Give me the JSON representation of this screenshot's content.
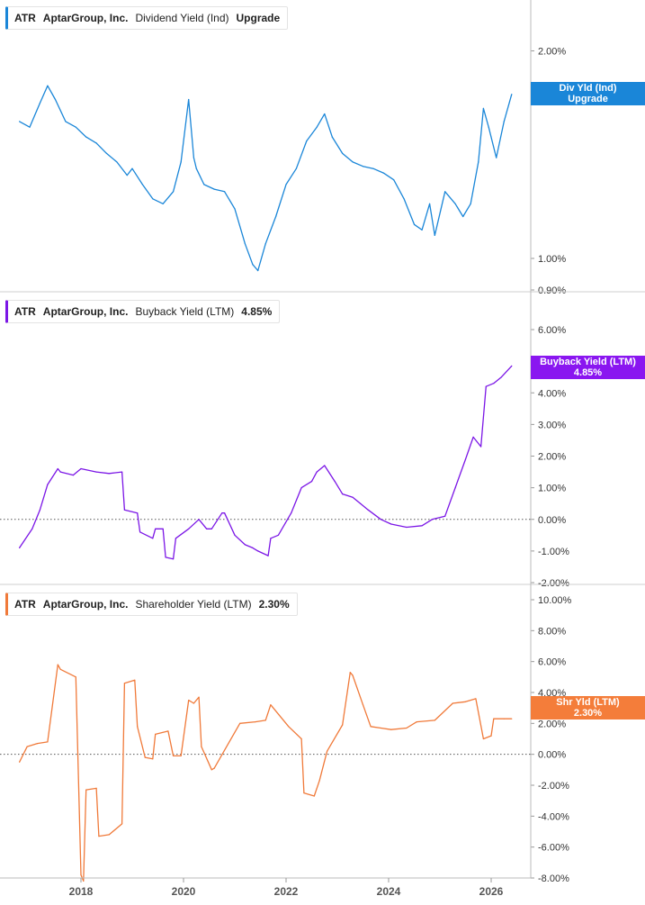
{
  "chart_data": [
    {
      "type": "line",
      "ticker": "ATR",
      "company": "AptarGroup, Inc.",
      "metric": "Dividend Yield (Ind)",
      "value_label": "Upgrade",
      "tag": [
        "Div Yld (Ind)",
        "Upgrade"
      ],
      "color": "#1a86d8",
      "scale": "log",
      "ylim": [
        0.9,
        2.3
      ],
      "yticks": [
        {
          "v": 2.0,
          "label": "2.00%"
        },
        {
          "v": 1.0,
          "label": "1.00%"
        },
        {
          "v": 0.9,
          "label": "0.90%"
        }
      ],
      "series": [
        {
          "x": [
            2016.8,
            2017.0,
            2017.2,
            2017.35,
            2017.5,
            2017.7,
            2017.9,
            2018.1,
            2018.3,
            2018.5,
            2018.7,
            2018.9,
            2019.0,
            2019.2,
            2019.4,
            2019.6,
            2019.8,
            2019.95,
            2020.1,
            2020.2,
            2020.25,
            2020.4,
            2020.6,
            2020.8,
            2021.0,
            2021.2,
            2021.35,
            2021.45,
            2021.6,
            2021.8,
            2022.0,
            2022.2,
            2022.4,
            2022.6,
            2022.75,
            2022.9,
            2023.1,
            2023.3,
            2023.5,
            2023.7,
            2023.9,
            2024.1,
            2024.3,
            2024.5,
            2024.65,
            2024.8,
            2024.9,
            2025.1,
            2025.3,
            2025.45,
            2025.6,
            2025.75,
            2025.85,
            2025.95,
            2026.1,
            2026.25,
            2026.4
          ],
          "y": [
            1.58,
            1.55,
            1.68,
            1.78,
            1.7,
            1.58,
            1.55,
            1.5,
            1.47,
            1.42,
            1.38,
            1.32,
            1.35,
            1.28,
            1.22,
            1.2,
            1.25,
            1.38,
            1.7,
            1.4,
            1.35,
            1.28,
            1.26,
            1.25,
            1.18,
            1.05,
            0.98,
            0.96,
            1.05,
            1.15,
            1.28,
            1.35,
            1.48,
            1.55,
            1.62,
            1.5,
            1.42,
            1.38,
            1.36,
            1.35,
            1.33,
            1.3,
            1.22,
            1.12,
            1.1,
            1.2,
            1.08,
            1.25,
            1.2,
            1.15,
            1.2,
            1.38,
            1.65,
            1.55,
            1.4,
            1.58,
            1.73
          ]
        }
      ]
    },
    {
      "type": "line",
      "ticker": "ATR",
      "company": "AptarGroup, Inc.",
      "metric": "Buyback Yield (LTM)",
      "value_label": "4.85%",
      "tag": [
        "Buyback Yield (LTM)",
        "4.85%"
      ],
      "color": "#7b16e6",
      "scale": "linear",
      "ylim": [
        -2.0,
        6.0
      ],
      "baseline": 0,
      "yticks": [
        {
          "v": 6,
          "label": "6.00%"
        },
        {
          "v": 5,
          "label": "5.00%"
        },
        {
          "v": 4,
          "label": "4.00%"
        },
        {
          "v": 3,
          "label": "3.00%"
        },
        {
          "v": 2,
          "label": "2.00%"
        },
        {
          "v": 1,
          "label": "1.00%"
        },
        {
          "v": 0,
          "label": "0.00%"
        },
        {
          "v": -1,
          "label": "-1.00%"
        },
        {
          "v": -2,
          "label": "-2.00%"
        }
      ],
      "series": [
        {
          "x": [
            2016.8,
            2017.05,
            2017.2,
            2017.35,
            2017.55,
            2017.6,
            2017.85,
            2018.0,
            2018.3,
            2018.55,
            2018.8,
            2018.85,
            2019.1,
            2019.15,
            2019.4,
            2019.45,
            2019.6,
            2019.65,
            2019.8,
            2019.85,
            2020.1,
            2020.3,
            2020.45,
            2020.55,
            2020.75,
            2020.8,
            2021.0,
            2021.2,
            2021.35,
            2021.45,
            2021.65,
            2021.7,
            2021.85,
            2022.1,
            2022.3,
            2022.5,
            2022.6,
            2022.75,
            2022.95,
            2023.1,
            2023.3,
            2023.45,
            2023.6,
            2023.85,
            2024.05,
            2024.35,
            2024.65,
            2024.85,
            2025.1,
            2025.3,
            2025.5,
            2025.65,
            2025.8,
            2025.9,
            2026.05,
            2026.2,
            2026.4
          ],
          "y": [
            -0.9,
            -0.3,
            0.3,
            1.1,
            1.6,
            1.5,
            1.4,
            1.6,
            1.5,
            1.45,
            1.5,
            0.3,
            0.2,
            -0.4,
            -0.6,
            -0.3,
            -0.3,
            -1.2,
            -1.25,
            -0.6,
            -0.3,
            0.0,
            -0.3,
            -0.3,
            0.2,
            0.2,
            -0.5,
            -0.8,
            -0.9,
            -1.0,
            -1.15,
            -0.6,
            -0.5,
            0.2,
            1.0,
            1.2,
            1.5,
            1.7,
            1.2,
            0.8,
            0.7,
            0.5,
            0.3,
            0.0,
            -0.15,
            -0.25,
            -0.2,
            0.0,
            0.1,
            1.0,
            1.9,
            2.6,
            2.3,
            4.2,
            4.3,
            4.5,
            4.85
          ]
        }
      ]
    },
    {
      "type": "line",
      "ticker": "ATR",
      "company": "AptarGroup, Inc.",
      "metric": "Shareholder Yield (LTM)",
      "value_label": "2.30%",
      "tag": [
        "Shr Yld (LTM)",
        "2.30%"
      ],
      "color": "#f07a3a",
      "scale": "linear",
      "ylim": [
        -8.0,
        10.0
      ],
      "baseline": 0,
      "yticks": [
        {
          "v": 10,
          "label": "10.00%"
        },
        {
          "v": 8,
          "label": "8.00%"
        },
        {
          "v": 6,
          "label": "6.00%"
        },
        {
          "v": 4,
          "label": "4.00%"
        },
        {
          "v": 2,
          "label": "2.00%"
        },
        {
          "v": 0,
          "label": "0.00%"
        },
        {
          "v": -2,
          "label": "-2.00%"
        },
        {
          "v": -4,
          "label": "-4.00%"
        },
        {
          "v": -6,
          "label": "-6.00%"
        },
        {
          "v": -8,
          "label": "-8.00%"
        }
      ],
      "series": [
        {
          "x": [
            2016.8,
            2016.95,
            2017.15,
            2017.35,
            2017.55,
            2017.6,
            2017.9,
            2018.0,
            2018.05,
            2018.1,
            2018.3,
            2018.35,
            2018.55,
            2018.8,
            2018.85,
            2019.05,
            2019.1,
            2019.25,
            2019.4,
            2019.45,
            2019.7,
            2019.8,
            2019.95,
            2020.1,
            2020.2,
            2020.3,
            2020.35,
            2020.55,
            2020.6,
            2021.1,
            2021.4,
            2021.6,
            2021.7,
            2022.05,
            2022.3,
            2022.35,
            2022.55,
            2022.65,
            2022.8,
            2023.1,
            2023.25,
            2023.3,
            2023.5,
            2023.65,
            2023.85,
            2024.05,
            2024.35,
            2024.55,
            2024.9,
            2025.25,
            2025.5,
            2025.7,
            2025.85,
            2026.0,
            2026.05,
            2026.25,
            2026.4
          ],
          "y": [
            -0.5,
            0.5,
            0.7,
            0.8,
            5.8,
            5.5,
            5.0,
            -7.8,
            -8.2,
            -2.3,
            -2.2,
            -5.3,
            -5.2,
            -4.5,
            4.6,
            4.8,
            1.8,
            -0.2,
            -0.3,
            1.3,
            1.5,
            -0.1,
            -0.1,
            3.5,
            3.3,
            3.7,
            0.5,
            -1.0,
            -0.9,
            2.0,
            2.1,
            2.2,
            3.2,
            1.8,
            1.0,
            -2.5,
            -2.7,
            -1.7,
            0.2,
            1.9,
            5.3,
            5.1,
            3.2,
            1.8,
            1.7,
            1.6,
            1.7,
            2.1,
            2.2,
            3.3,
            3.4,
            3.6,
            1.0,
            1.2,
            2.3,
            2.3,
            2.3
          ]
        }
      ]
    }
  ],
  "x_axis": {
    "ticks": [
      {
        "v": 2018,
        "label": "2018"
      },
      {
        "v": 2020,
        "label": "2020"
      },
      {
        "v": 2022,
        "label": "2022"
      },
      {
        "v": 2024,
        "label": "2024"
      },
      {
        "v": 2026,
        "label": "2026"
      }
    ]
  }
}
